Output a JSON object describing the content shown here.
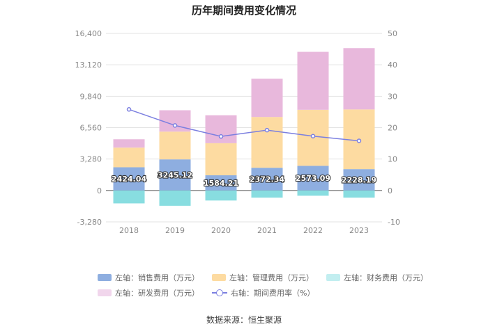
{
  "title": "历年期间费用变化情况",
  "source": "数据来源：恒生聚源",
  "legend": [
    {
      "label": "左轴：销售费用（万元）",
      "color": "#8eaee0",
      "kind": "bar"
    },
    {
      "label": "左轴：管理费用（万元）",
      "color": "#fddba1",
      "kind": "bar"
    },
    {
      "label": "左轴：财务费用（万元）",
      "color": "#88dde0",
      "kind": "bar"
    },
    {
      "label": "左轴：研发费用（万元）",
      "color": "#e8b8dc",
      "kind": "bar"
    },
    {
      "label": "右轴：期间费用率（%）",
      "color": "#7b7fe0",
      "kind": "line"
    }
  ],
  "chart_data": {
    "type": "bar",
    "title": "历年期间费用变化情况",
    "categories": [
      "2018",
      "2019",
      "2020",
      "2021",
      "2022",
      "2023"
    ],
    "left_axis": {
      "ylim": [
        -3280,
        16400
      ],
      "ticks": [
        "-3,280",
        "0",
        "3,280",
        "6,560",
        "9,840",
        "13,120",
        "16,400"
      ],
      "tick_values": [
        -3280,
        0,
        3280,
        6560,
        9840,
        13120,
        16400
      ]
    },
    "right_axis": {
      "ylim": [
        -10,
        50
      ],
      "ticks": [
        "-10",
        "0",
        "10",
        "20",
        "30",
        "40",
        "50"
      ],
      "tick_values": [
        -10,
        0,
        10,
        20,
        30,
        40,
        50
      ]
    },
    "series": [
      {
        "name": "销售费用",
        "axis": "left",
        "stack": true,
        "color": "#8eaee0",
        "values": [
          2424.04,
          3245.12,
          1584.21,
          2372.34,
          2573.09,
          2228.19
        ],
        "labels": [
          "2424.04",
          "3245.12",
          "1584.21",
          "2372.34",
          "2573.09",
          "2228.19"
        ]
      },
      {
        "name": "管理费用",
        "axis": "left",
        "stack": true,
        "color": "#fddba1",
        "values": [
          2050,
          2900,
          3350,
          5300,
          5850,
          6230
        ]
      },
      {
        "name": "研发费用",
        "axis": "left",
        "stack": true,
        "color": "#e8b8dc",
        "values": [
          870,
          2230,
          2920,
          4000,
          6050,
          6400
        ]
      },
      {
        "name": "财务费用",
        "axis": "left",
        "stack": false,
        "color": "#88dde0",
        "values": [
          -1350,
          -1600,
          -1050,
          -750,
          -550,
          -750
        ]
      },
      {
        "name": "期间费用率",
        "axis": "right",
        "type": "line",
        "color": "#7b7fe0",
        "values": [
          25.8,
          20.7,
          17.2,
          19.2,
          17.3,
          15.8
        ]
      }
    ]
  }
}
